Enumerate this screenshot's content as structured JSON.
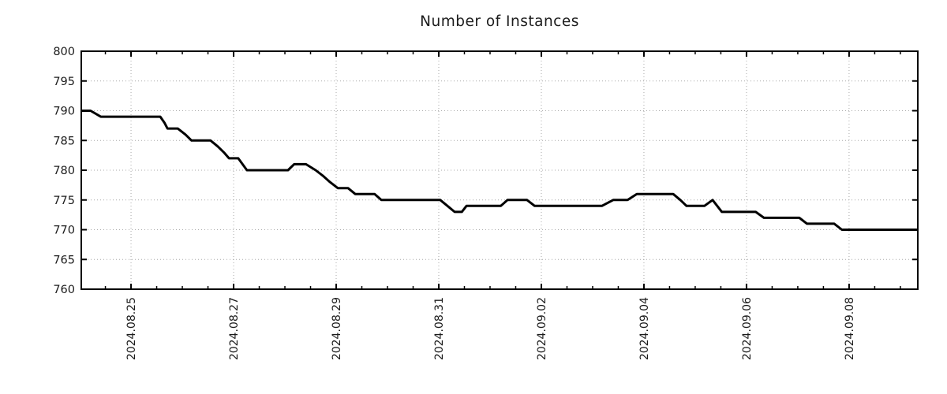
{
  "chart_data": {
    "type": "line",
    "title": "Number of Instances",
    "xlabel": "",
    "ylabel": "",
    "x_range": [
      0,
      16.31
    ],
    "y_range": [
      760,
      800
    ],
    "y_ticks": [
      760,
      765,
      770,
      775,
      780,
      785,
      790,
      795,
      800
    ],
    "x_ticks": [
      {
        "label": "2024.08.25",
        "t": 0.97
      },
      {
        "label": "2024.08.27",
        "t": 2.97
      },
      {
        "label": "2024.08.29",
        "t": 4.97
      },
      {
        "label": "2024.08.31",
        "t": 6.97
      },
      {
        "label": "2024.09.02",
        "t": 8.97
      },
      {
        "label": "2024.09.04",
        "t": 10.97
      },
      {
        "label": "2024.09.06",
        "t": 12.97
      },
      {
        "label": "2024.09.08",
        "t": 14.97
      }
    ],
    "x_minor_start": 0.47,
    "x_minor_step": 0.5,
    "grid": true,
    "legend": "none",
    "colors": {
      "line": "#000000",
      "grid": "#a9a9a9",
      "axis": "#000000",
      "text": "#1c1c1c",
      "background": "#ffffff"
    },
    "series": [
      {
        "name": "instances",
        "points": [
          [
            0.0,
            790
          ],
          [
            0.18,
            790
          ],
          [
            0.38,
            789
          ],
          [
            1.54,
            789
          ],
          [
            1.62,
            788
          ],
          [
            1.68,
            787
          ],
          [
            1.88,
            787
          ],
          [
            2.03,
            786
          ],
          [
            2.15,
            785
          ],
          [
            2.52,
            785
          ],
          [
            2.66,
            784
          ],
          [
            2.78,
            783
          ],
          [
            2.88,
            782
          ],
          [
            3.06,
            782
          ],
          [
            3.23,
            780
          ],
          [
            4.03,
            780
          ],
          [
            4.15,
            781
          ],
          [
            4.38,
            781
          ],
          [
            4.57,
            780
          ],
          [
            4.72,
            779
          ],
          [
            4.85,
            778
          ],
          [
            5.0,
            777
          ],
          [
            5.2,
            777
          ],
          [
            5.34,
            776
          ],
          [
            5.72,
            776
          ],
          [
            5.85,
            775
          ],
          [
            7.0,
            775
          ],
          [
            7.14,
            774
          ],
          [
            7.28,
            773
          ],
          [
            7.42,
            773
          ],
          [
            7.51,
            774
          ],
          [
            8.18,
            774
          ],
          [
            8.31,
            775
          ],
          [
            8.69,
            775
          ],
          [
            8.84,
            774
          ],
          [
            10.15,
            774
          ],
          [
            10.37,
            775
          ],
          [
            10.65,
            775
          ],
          [
            10.83,
            776
          ],
          [
            11.54,
            776
          ],
          [
            11.68,
            775
          ],
          [
            11.8,
            774
          ],
          [
            12.15,
            774
          ],
          [
            12.31,
            775
          ],
          [
            12.49,
            773
          ],
          [
            13.15,
            773
          ],
          [
            13.31,
            772
          ],
          [
            14.0,
            772
          ],
          [
            14.15,
            771
          ],
          [
            14.68,
            771
          ],
          [
            14.83,
            770
          ],
          [
            16.31,
            770
          ]
        ]
      }
    ]
  }
}
